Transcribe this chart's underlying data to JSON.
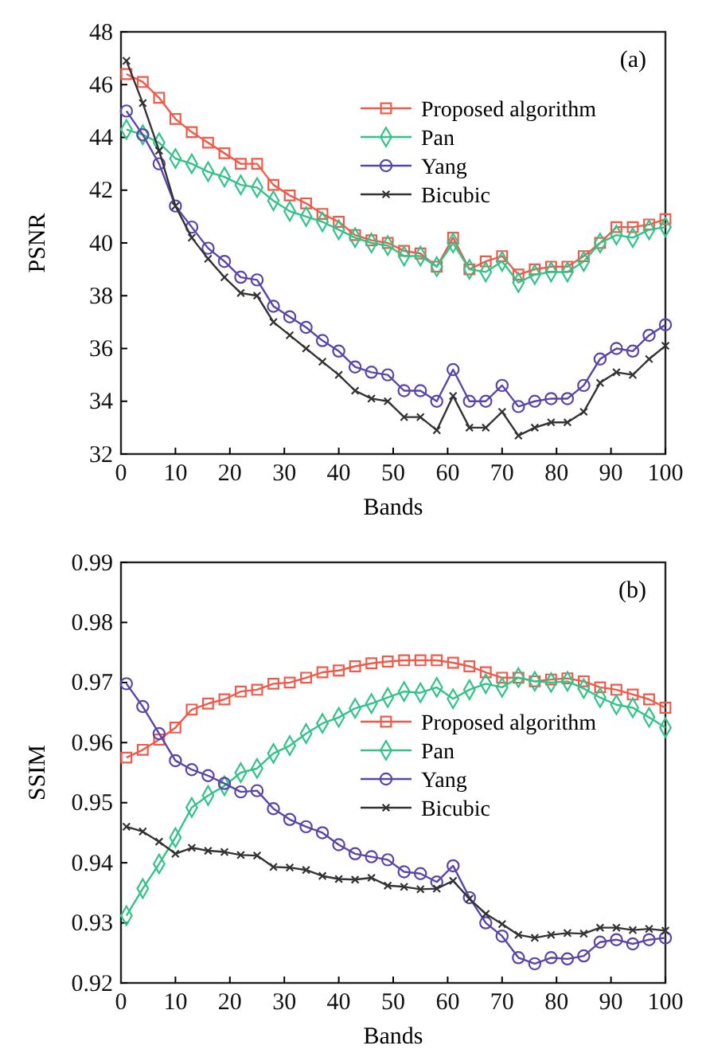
{
  "chart_data": [
    {
      "type": "line",
      "xlabel": "Bands",
      "ylabel": "PSNR",
      "annotations": [
        "(a)"
      ],
      "x": [
        1,
        4,
        7,
        10,
        13,
        16,
        19,
        22,
        25,
        28,
        31,
        34,
        37,
        40,
        43,
        46,
        49,
        52,
        55,
        58,
        61,
        64,
        67,
        70,
        73,
        76,
        79,
        82,
        85,
        88,
        91,
        94,
        97,
        100
      ],
      "xlim": [
        0,
        100
      ],
      "xticks": [
        0,
        10,
        20,
        30,
        40,
        50,
        60,
        70,
        80,
        90,
        100
      ],
      "ylim": [
        32,
        48
      ],
      "yticks": [
        32,
        34,
        36,
        38,
        40,
        42,
        44,
        46,
        48
      ],
      "legend": "top right",
      "grid": false,
      "series": [
        {
          "name": "Proposed algorithm",
          "color": "#f05a4a",
          "marker": "square",
          "values": [
            46.4,
            46.1,
            45.5,
            44.7,
            44.2,
            43.8,
            43.4,
            43.0,
            43.0,
            42.2,
            41.8,
            41.5,
            41.1,
            40.8,
            40.3,
            40.1,
            40.0,
            39.7,
            39.6,
            39.1,
            40.2,
            39.0,
            39.3,
            39.5,
            38.8,
            39.0,
            39.1,
            39.1,
            39.5,
            40.0,
            40.6,
            40.6,
            40.7,
            40.9
          ]
        },
        {
          "name": "Pan",
          "color": "#33c28a",
          "marker": "diamond",
          "values": [
            44.3,
            44.1,
            43.8,
            43.2,
            43.0,
            42.7,
            42.5,
            42.2,
            42.1,
            41.6,
            41.2,
            41.0,
            40.8,
            40.5,
            40.2,
            40.0,
            39.9,
            39.5,
            39.5,
            39.1,
            40.0,
            39.0,
            38.9,
            39.3,
            38.5,
            38.8,
            38.9,
            38.9,
            39.3,
            40.0,
            40.3,
            40.2,
            40.5,
            40.6
          ]
        },
        {
          "name": "Yang",
          "color": "#5a46a8",
          "marker": "circle",
          "values": [
            45.0,
            44.1,
            43.0,
            41.4,
            40.6,
            39.8,
            39.3,
            38.7,
            38.6,
            37.6,
            37.2,
            36.8,
            36.3,
            35.9,
            35.3,
            35.1,
            35.0,
            34.4,
            34.4,
            34.0,
            35.2,
            34.0,
            34.0,
            34.6,
            33.8,
            34.0,
            34.1,
            34.1,
            34.6,
            35.6,
            36.0,
            35.9,
            36.5,
            36.9
          ]
        },
        {
          "name": "Bicubic",
          "color": "#333333",
          "marker": "cross",
          "values": [
            46.9,
            45.3,
            43.5,
            41.4,
            40.2,
            39.4,
            38.7,
            38.1,
            38.0,
            37.0,
            36.5,
            36.0,
            35.5,
            35.0,
            34.4,
            34.1,
            34.0,
            33.4,
            33.4,
            32.9,
            34.2,
            33.0,
            33.0,
            33.6,
            32.7,
            33.0,
            33.2,
            33.2,
            33.6,
            34.7,
            35.1,
            35.0,
            35.6,
            36.1
          ]
        }
      ]
    },
    {
      "type": "line",
      "xlabel": "Bands",
      "ylabel": "SSIM",
      "annotations": [
        "(b)"
      ],
      "x": [
        1,
        4,
        7,
        10,
        13,
        16,
        19,
        22,
        25,
        28,
        31,
        34,
        37,
        40,
        43,
        46,
        49,
        52,
        55,
        58,
        61,
        64,
        67,
        70,
        73,
        76,
        79,
        82,
        85,
        88,
        91,
        94,
        97,
        100
      ],
      "xlim": [
        0,
        100
      ],
      "xticks": [
        0,
        10,
        20,
        30,
        40,
        50,
        60,
        70,
        80,
        90,
        100
      ],
      "ylim": [
        0.92,
        0.99
      ],
      "yticks": [
        0.92,
        0.93,
        0.94,
        0.95,
        0.96,
        0.97,
        0.98,
        0.99
      ],
      "legend": "right",
      "grid": false,
      "series": [
        {
          "name": "Proposed algorithm",
          "color": "#f05a4a",
          "marker": "square",
          "values": [
            0.9575,
            0.9588,
            0.9605,
            0.9625,
            0.9655,
            0.9665,
            0.9672,
            0.9685,
            0.9688,
            0.9698,
            0.97,
            0.9708,
            0.9717,
            0.972,
            0.9727,
            0.9732,
            0.9735,
            0.9737,
            0.9737,
            0.9737,
            0.9733,
            0.9727,
            0.9717,
            0.9708,
            0.9708,
            0.9702,
            0.9705,
            0.9707,
            0.9702,
            0.9692,
            0.9688,
            0.968,
            0.9672,
            0.9658
          ]
        },
        {
          "name": "Pan",
          "color": "#33c28a",
          "marker": "diamond",
          "values": [
            0.9312,
            0.9357,
            0.9398,
            0.9442,
            0.9492,
            0.9512,
            0.9528,
            0.955,
            0.9557,
            0.9582,
            0.9595,
            0.9615,
            0.9632,
            0.9642,
            0.9657,
            0.9665,
            0.9675,
            0.9685,
            0.9683,
            0.9692,
            0.9673,
            0.9688,
            0.9698,
            0.9692,
            0.9708,
            0.9702,
            0.97,
            0.9702,
            0.969,
            0.9675,
            0.9663,
            0.9658,
            0.9642,
            0.9625
          ]
        },
        {
          "name": "Yang",
          "color": "#5a46a8",
          "marker": "circle",
          "values": [
            0.9698,
            0.966,
            0.9615,
            0.957,
            0.9555,
            0.9545,
            0.9532,
            0.9518,
            0.952,
            0.949,
            0.9472,
            0.946,
            0.945,
            0.943,
            0.9415,
            0.941,
            0.9405,
            0.9385,
            0.9382,
            0.9368,
            0.9395,
            0.9342,
            0.93,
            0.9278,
            0.9242,
            0.9232,
            0.9242,
            0.924,
            0.9245,
            0.9268,
            0.9272,
            0.9265,
            0.9272,
            0.9275
          ]
        },
        {
          "name": "Bicubic",
          "color": "#333333",
          "marker": "cross",
          "values": [
            0.946,
            0.9452,
            0.9435,
            0.9415,
            0.9425,
            0.942,
            0.9418,
            0.9413,
            0.9412,
            0.9393,
            0.9392,
            0.9388,
            0.9378,
            0.9373,
            0.9372,
            0.9375,
            0.9362,
            0.936,
            0.9356,
            0.9357,
            0.937,
            0.934,
            0.9315,
            0.9298,
            0.928,
            0.9275,
            0.928,
            0.9283,
            0.9282,
            0.9292,
            0.9292,
            0.9288,
            0.929,
            0.9287
          ]
        }
      ]
    }
  ]
}
